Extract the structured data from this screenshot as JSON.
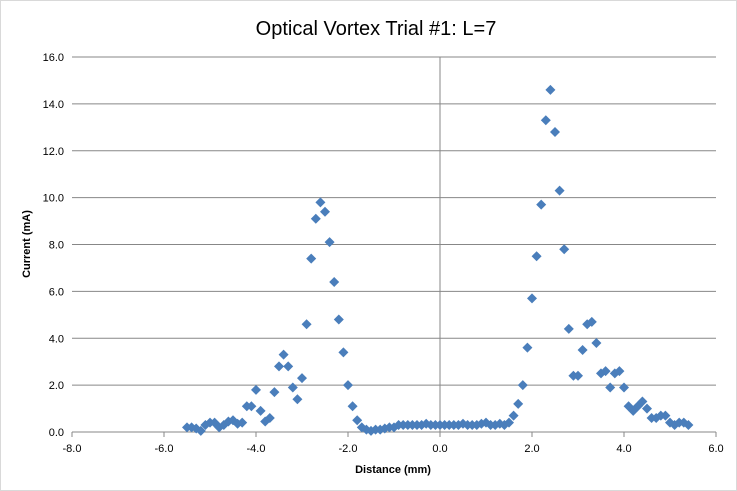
{
  "chart_data": {
    "type": "scatter",
    "title": "Optical Vortex Trial #1: L=7",
    "xlabel": "Distance  (mm)",
    "ylabel": "Current (mA)",
    "xlim": [
      -8.0,
      6.0
    ],
    "ylim": [
      0.0,
      16.0
    ],
    "x_ticks": [
      "-8.0",
      "-6.0",
      "-4.0",
      "-2.0",
      "0.0",
      "2.0",
      "4.0",
      "6.0"
    ],
    "y_ticks": [
      "0.0",
      "2.0",
      "4.0",
      "6.0",
      "8.0",
      "10.0",
      "12.0",
      "14.0",
      "16.0"
    ],
    "grid": "horizontal major gridlines",
    "legend": "none",
    "marker": "diamond",
    "series_color": "#4a7ebb",
    "gridline_color": "#878787",
    "series": [
      {
        "points": [
          [
            -5.5,
            0.2
          ],
          [
            -5.4,
            0.2
          ],
          [
            -5.3,
            0.15
          ],
          [
            -5.2,
            0.05
          ],
          [
            -5.1,
            0.3
          ],
          [
            -5.0,
            0.4
          ],
          [
            -4.9,
            0.4
          ],
          [
            -4.8,
            0.2
          ],
          [
            -4.7,
            0.3
          ],
          [
            -4.6,
            0.45
          ],
          [
            -4.5,
            0.5
          ],
          [
            -4.4,
            0.35
          ],
          [
            -4.3,
            0.4
          ],
          [
            -4.2,
            1.1
          ],
          [
            -4.1,
            1.1
          ],
          [
            -4.0,
            1.8
          ],
          [
            -3.9,
            0.9
          ],
          [
            -3.8,
            0.45
          ],
          [
            -3.7,
            0.6
          ],
          [
            -3.6,
            1.7
          ],
          [
            -3.5,
            2.8
          ],
          [
            -3.4,
            3.3
          ],
          [
            -3.3,
            2.8
          ],
          [
            -3.2,
            1.9
          ],
          [
            -3.1,
            1.4
          ],
          [
            -3.0,
            2.3
          ],
          [
            -2.9,
            4.6
          ],
          [
            -2.8,
            7.4
          ],
          [
            -2.7,
            9.1
          ],
          [
            -2.6,
            9.8
          ],
          [
            -2.5,
            9.4
          ],
          [
            -2.4,
            8.1
          ],
          [
            -2.3,
            6.4
          ],
          [
            -2.2,
            4.8
          ],
          [
            -2.1,
            3.4
          ],
          [
            -2.0,
            2.0
          ],
          [
            -1.9,
            1.1
          ],
          [
            -1.8,
            0.5
          ],
          [
            -1.7,
            0.2
          ],
          [
            -1.6,
            0.1
          ],
          [
            -1.5,
            0.05
          ],
          [
            -1.4,
            0.1
          ],
          [
            -1.3,
            0.1
          ],
          [
            -1.2,
            0.15
          ],
          [
            -1.1,
            0.2
          ],
          [
            -1.0,
            0.2
          ],
          [
            -0.9,
            0.3
          ],
          [
            -0.8,
            0.3
          ],
          [
            -0.7,
            0.3
          ],
          [
            -0.6,
            0.3
          ],
          [
            -0.5,
            0.3
          ],
          [
            -0.4,
            0.3
          ],
          [
            -0.3,
            0.35
          ],
          [
            -0.2,
            0.3
          ],
          [
            -0.1,
            0.3
          ],
          [
            0.0,
            0.3
          ],
          [
            0.1,
            0.3
          ],
          [
            0.2,
            0.3
          ],
          [
            0.3,
            0.3
          ],
          [
            0.4,
            0.3
          ],
          [
            0.5,
            0.35
          ],
          [
            0.6,
            0.3
          ],
          [
            0.7,
            0.3
          ],
          [
            0.8,
            0.3
          ],
          [
            0.9,
            0.35
          ],
          [
            1.0,
            0.4
          ],
          [
            1.1,
            0.3
          ],
          [
            1.2,
            0.3
          ],
          [
            1.3,
            0.35
          ],
          [
            1.4,
            0.3
          ],
          [
            1.5,
            0.4
          ],
          [
            1.6,
            0.7
          ],
          [
            1.7,
            1.2
          ],
          [
            1.8,
            2.0
          ],
          [
            1.9,
            3.6
          ],
          [
            2.0,
            5.7
          ],
          [
            2.1,
            7.5
          ],
          [
            2.2,
            9.7
          ],
          [
            2.3,
            13.3
          ],
          [
            2.4,
            14.6
          ],
          [
            2.5,
            12.8
          ],
          [
            2.6,
            10.3
          ],
          [
            2.7,
            7.8
          ],
          [
            2.8,
            4.4
          ],
          [
            2.9,
            2.4
          ],
          [
            3.0,
            2.4
          ],
          [
            3.1,
            3.5
          ],
          [
            3.2,
            4.6
          ],
          [
            3.3,
            4.7
          ],
          [
            3.4,
            3.8
          ],
          [
            3.5,
            2.5
          ],
          [
            3.6,
            2.6
          ],
          [
            3.7,
            1.9
          ],
          [
            3.8,
            2.5
          ],
          [
            3.9,
            2.6
          ],
          [
            4.0,
            1.9
          ],
          [
            4.1,
            1.1
          ],
          [
            4.2,
            0.9
          ],
          [
            4.3,
            1.1
          ],
          [
            4.4,
            1.3
          ],
          [
            4.5,
            1.0
          ],
          [
            4.6,
            0.6
          ],
          [
            4.7,
            0.6
          ],
          [
            4.8,
            0.7
          ],
          [
            4.9,
            0.7
          ],
          [
            5.0,
            0.4
          ],
          [
            5.1,
            0.3
          ],
          [
            5.2,
            0.4
          ],
          [
            5.3,
            0.4
          ],
          [
            5.4,
            0.3
          ]
        ]
      }
    ]
  }
}
